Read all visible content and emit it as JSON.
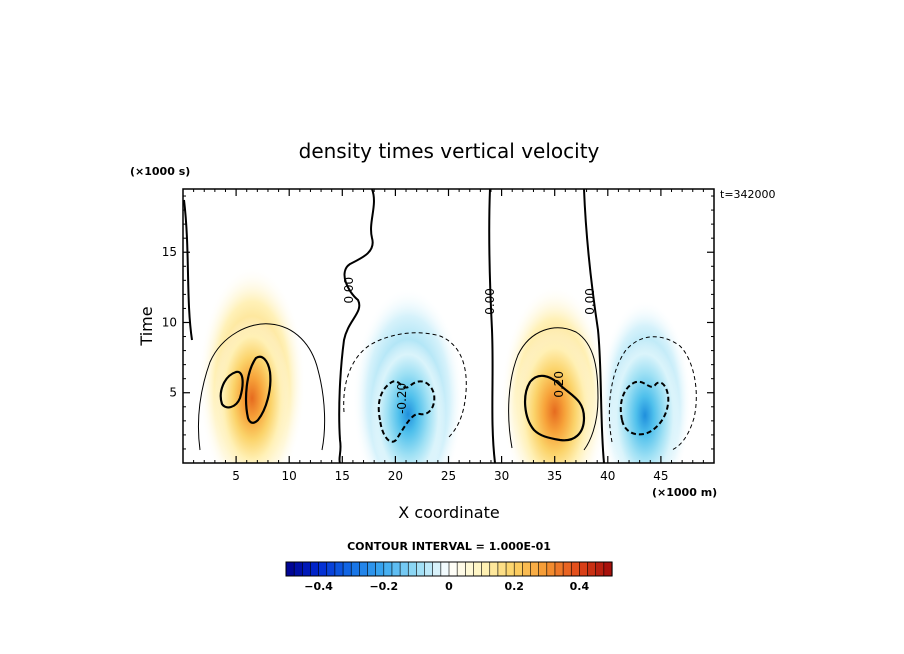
{
  "chart_data": {
    "type": "heatmap",
    "title": "density times vertical velocity",
    "xlabel": "X coordinate",
    "ylabel": "Time",
    "x_unit_label": "(×1000 m)",
    "y_unit_label": "(×1000 s)",
    "time_stamp": "t=342000",
    "xlim": [
      0,
      50
    ],
    "ylim": [
      0,
      19.5
    ],
    "x_ticks": [
      5,
      10,
      15,
      20,
      25,
      30,
      35,
      40,
      45
    ],
    "y_ticks": [
      5,
      10,
      15
    ],
    "contour_interval_label": "CONTOUR INTERVAL = 1.000E-01",
    "contour_labels": [
      {
        "text": "0.00",
        "x": 16.0,
        "y": 12.3
      },
      {
        "text": "0.00",
        "x": 29.3,
        "y": 11.5
      },
      {
        "text": "0.00",
        "x": 38.7,
        "y": 11.5
      },
      {
        "text": "0.20",
        "x": 35.8,
        "y": 5.6
      },
      {
        "text": "-0.20",
        "x": 21.0,
        "y": 4.6
      }
    ],
    "colorbar": {
      "range": [
        -0.5,
        0.5
      ],
      "tick_values": [
        -0.4,
        -0.2,
        0,
        0.2,
        0.4
      ],
      "tick_labels": [
        "−0.4",
        "−0.2",
        "0",
        "0.2",
        "0.4"
      ]
    },
    "cells": [
      {
        "sign": 1,
        "x": 6.5,
        "y": 6.0,
        "amp": 0.34,
        "sx": 3.0,
        "sy": 4.8
      },
      {
        "sign": -1,
        "x": 21.2,
        "y": 4.8,
        "amp": 0.3,
        "sx": 3.1,
        "sy": 4.6
      },
      {
        "sign": 1,
        "x": 35.0,
        "y": 5.0,
        "amp": 0.4,
        "sx": 3.0,
        "sy": 4.6
      },
      {
        "sign": -1,
        "x": 43.5,
        "y": 4.6,
        "amp": 0.4,
        "sx": 2.6,
        "sy": 4.2
      }
    ],
    "zero_lines_x": [
      14.8,
      29.0,
      38.0
    ]
  }
}
